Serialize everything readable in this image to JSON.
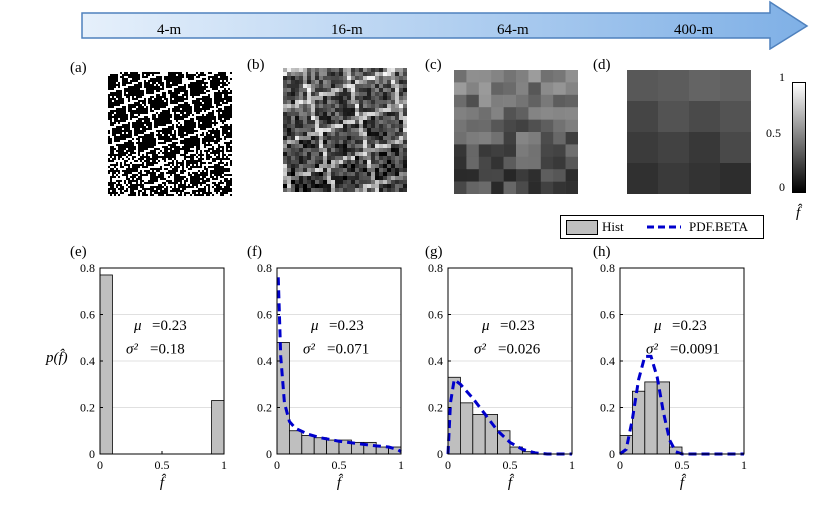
{
  "arrow": {
    "labels": [
      "4-m",
      "16-m",
      "64-m",
      "400-m"
    ],
    "fill_start": "#e6f0fb",
    "fill_end": "#7fb0e6",
    "stroke": "#4f81bd"
  },
  "maps": [
    {
      "panel": "(a)",
      "resolution": "4-m",
      "kind": "binary"
    },
    {
      "panel": "(b)",
      "resolution": "16-m",
      "kind": "gray"
    },
    {
      "panel": "(c)",
      "resolution": "64-m",
      "kind": "gray"
    },
    {
      "panel": "(d)",
      "resolution": "400-m",
      "kind": "gray"
    }
  ],
  "colorbar": {
    "ticks": [
      "1",
      "0.5",
      "0"
    ],
    "label": "f̂",
    "range": [
      0,
      1
    ],
    "colors": [
      "#000000",
      "#ffffff"
    ]
  },
  "legend": {
    "hist_label": "Hist",
    "pdf_label": "PDF.BETA",
    "hist_color": "#bfbfbf",
    "pdf_color": "#0000cc"
  },
  "y_axis_label": "p(f̂)",
  "chart_data": [
    {
      "panel": "(e)",
      "type": "bar",
      "x_label": "f̂",
      "xlim": [
        0,
        1
      ],
      "ylim": [
        0,
        0.8
      ],
      "x_ticks": [
        "0",
        "0.5",
        "1"
      ],
      "y_ticks": [
        "0",
        "0.2",
        "0.4",
        "0.6",
        "0.8"
      ],
      "bin_width": 0.1,
      "hist": [
        {
          "x": 0.05,
          "y": 0.77
        },
        {
          "x": 0.95,
          "y": 0.23
        }
      ],
      "pdf": [],
      "mu_label": "μ",
      "mu_value": "=0.23",
      "sigma_label": "σ²",
      "sigma_value": "=0.18"
    },
    {
      "panel": "(f)",
      "type": "bar",
      "x_label": "f̂",
      "xlim": [
        0,
        1
      ],
      "ylim": [
        0,
        0.8
      ],
      "x_ticks": [
        "0",
        "0.5",
        "1"
      ],
      "y_ticks": [
        "0",
        "0.2",
        "0.4",
        "0.6",
        "0.8"
      ],
      "bin_width": 0.1,
      "hist": [
        {
          "x": 0.05,
          "y": 0.48
        },
        {
          "x": 0.15,
          "y": 0.1
        },
        {
          "x": 0.25,
          "y": 0.08
        },
        {
          "x": 0.35,
          "y": 0.07
        },
        {
          "x": 0.45,
          "y": 0.06
        },
        {
          "x": 0.55,
          "y": 0.06
        },
        {
          "x": 0.65,
          "y": 0.05
        },
        {
          "x": 0.75,
          "y": 0.05
        },
        {
          "x": 0.85,
          "y": 0.03
        },
        {
          "x": 0.95,
          "y": 0.03
        }
      ],
      "pdf": [
        [
          0.01,
          0.76
        ],
        [
          0.03,
          0.42
        ],
        [
          0.06,
          0.22
        ],
        [
          0.1,
          0.14
        ],
        [
          0.15,
          0.11
        ],
        [
          0.25,
          0.085
        ],
        [
          0.35,
          0.07
        ],
        [
          0.5,
          0.055
        ],
        [
          0.65,
          0.045
        ],
        [
          0.8,
          0.035
        ],
        [
          0.9,
          0.03
        ],
        [
          0.97,
          0.02
        ],
        [
          1.0,
          0.01
        ]
      ],
      "mu_label": "μ",
      "mu_value": "=0.23",
      "sigma_label": "σ²",
      "sigma_value": "=0.071"
    },
    {
      "panel": "(g)",
      "type": "bar",
      "x_label": "f̂",
      "xlim": [
        0,
        1
      ],
      "ylim": [
        0,
        0.8
      ],
      "x_ticks": [
        "0",
        "0.5",
        "1"
      ],
      "y_ticks": [
        "0",
        "0.2",
        "0.4",
        "0.6",
        "0.8"
      ],
      "bin_width": 0.1,
      "hist": [
        {
          "x": 0.05,
          "y": 0.33
        },
        {
          "x": 0.15,
          "y": 0.22
        },
        {
          "x": 0.25,
          "y": 0.17
        },
        {
          "x": 0.35,
          "y": 0.17
        },
        {
          "x": 0.45,
          "y": 0.1
        },
        {
          "x": 0.55,
          "y": 0.03
        },
        {
          "x": 0.65,
          "y": 0.01
        }
      ],
      "pdf": [
        [
          0.0,
          0.0
        ],
        [
          0.02,
          0.22
        ],
        [
          0.05,
          0.32
        ],
        [
          0.1,
          0.3
        ],
        [
          0.2,
          0.24
        ],
        [
          0.3,
          0.17
        ],
        [
          0.4,
          0.1
        ],
        [
          0.5,
          0.05
        ],
        [
          0.6,
          0.02
        ],
        [
          0.7,
          0.005
        ],
        [
          0.8,
          0.0
        ],
        [
          1.0,
          0.0
        ]
      ],
      "mu_label": "μ",
      "mu_value": "=0.23",
      "sigma_label": "σ²",
      "sigma_value": "=0.026"
    },
    {
      "panel": "(h)",
      "type": "bar",
      "x_label": "f̂",
      "xlim": [
        0,
        1
      ],
      "ylim": [
        0,
        0.8
      ],
      "x_ticks": [
        "0",
        "0.5",
        "1"
      ],
      "y_ticks": [
        "0",
        "0.2",
        "0.4",
        "0.6",
        "0.8"
      ],
      "bin_width": 0.1,
      "hist": [
        {
          "x": 0.05,
          "y": 0.08
        },
        {
          "x": 0.15,
          "y": 0.27
        },
        {
          "x": 0.25,
          "y": 0.31
        },
        {
          "x": 0.35,
          "y": 0.31
        },
        {
          "x": 0.45,
          "y": 0.03
        }
      ],
      "pdf": [
        [
          0.0,
          0.0
        ],
        [
          0.05,
          0.02
        ],
        [
          0.1,
          0.15
        ],
        [
          0.15,
          0.32
        ],
        [
          0.2,
          0.42
        ],
        [
          0.25,
          0.42
        ],
        [
          0.3,
          0.33
        ],
        [
          0.35,
          0.18
        ],
        [
          0.4,
          0.06
        ],
        [
          0.45,
          0.01
        ],
        [
          0.5,
          0.0
        ],
        [
          1.0,
          0.0
        ]
      ],
      "mu_label": "μ",
      "mu_value": "=0.23",
      "sigma_label": "σ²",
      "sigma_value": "=0.0091"
    }
  ]
}
